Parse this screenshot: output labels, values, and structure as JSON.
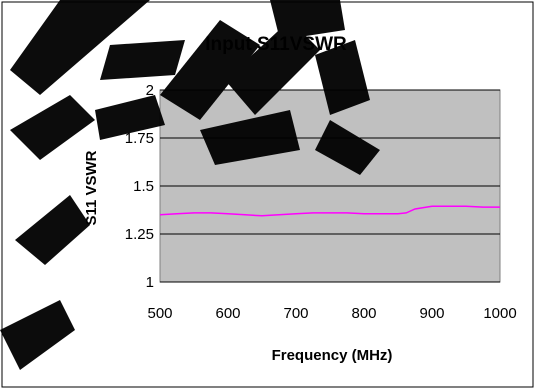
{
  "chart_data": {
    "type": "line",
    "title": "Input S11VSWR",
    "xlabel": "Frequency (MHz)",
    "ylabel": "S11 VSWR",
    "xlim": [
      500,
      1000
    ],
    "ylim": [
      1,
      2
    ],
    "x_ticks": [
      "500",
      "600",
      "700",
      "800",
      "900",
      "1000"
    ],
    "y_ticks": [
      "1",
      "1.25",
      "1.5",
      "1.75",
      "2"
    ],
    "grid": true,
    "legend": "none",
    "series": [
      {
        "color": "#ff00ff",
        "x": [
          500,
          525,
          550,
          575,
          600,
          625,
          650,
          675,
          700,
          725,
          750,
          775,
          800,
          825,
          850,
          862,
          875,
          900,
          925,
          950,
          975,
          1000
        ],
        "y": [
          1.35,
          1.355,
          1.36,
          1.36,
          1.355,
          1.35,
          1.345,
          1.35,
          1.355,
          1.36,
          1.36,
          1.36,
          1.355,
          1.355,
          1.355,
          1.36,
          1.38,
          1.395,
          1.395,
          1.395,
          1.39,
          1.39
        ]
      }
    ],
    "plot_background": "#c0c0c0",
    "gridline_color": "#000000"
  }
}
